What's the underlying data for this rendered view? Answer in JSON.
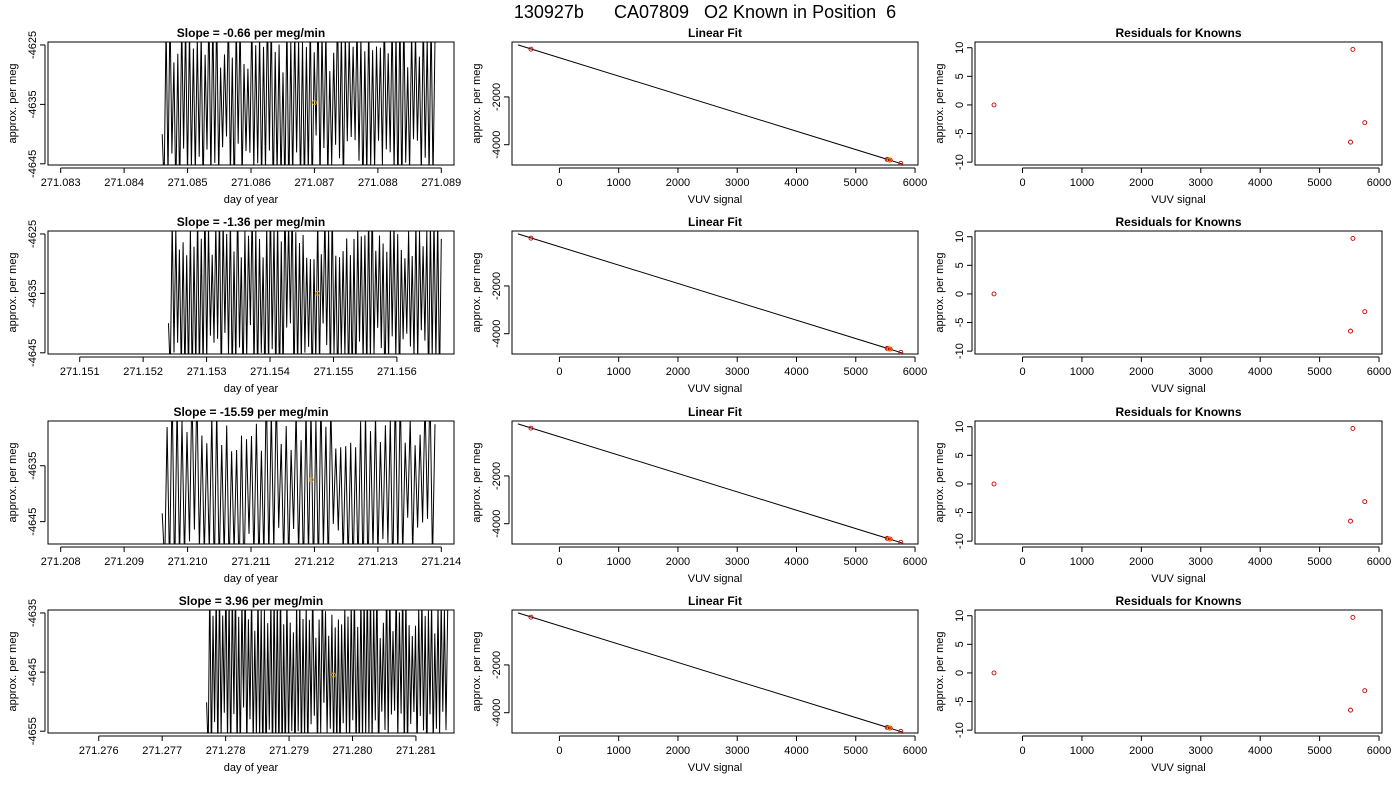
{
  "title": "130927b      CA07809   O2 Known in Position  6",
  "colors": {
    "trace": "#000000",
    "fit_line": "#000000",
    "point": "#cc0000",
    "highlight": "#e69f00",
    "frame": "#000000"
  },
  "chart_data": [
    {
      "type": "line",
      "title": "Slope =  -0.66  per meg/min",
      "xlabel": "day of year",
      "ylabel": "approx. per meg",
      "xlim": [
        271.0828,
        271.0892
      ],
      "ylim": [
        -4645.2,
        -4624.5
      ],
      "xticks": [
        271.083,
        271.084,
        271.085,
        271.086,
        271.087,
        271.088,
        271.089
      ],
      "xtick_decimals": 3,
      "yticks": [
        -4645,
        -4635,
        -4625
      ],
      "grid": false,
      "trace": {
        "start": 271.0846,
        "end": 271.0889,
        "seed": 11,
        "count": 140
      },
      "highlight_point": {
        "x": 271.087,
        "y": -4634.7
      }
    },
    {
      "type": "scatter",
      "title": "Linear Fit",
      "xlabel": "VUV signal",
      "ylabel": "approx. per meg",
      "xlim": [
        -800,
        6050
      ],
      "ylim": [
        -4850,
        300
      ],
      "xticks": [
        0,
        1000,
        2000,
        3000,
        4000,
        5000,
        6000
      ],
      "yticks": [
        -4000,
        -2000
      ],
      "grid": false,
      "fit_line": {
        "x": [
          -700,
          5780
        ],
        "y": [
          180,
          -4805
        ]
      },
      "points": [
        {
          "x": -480,
          "y": 0
        },
        {
          "x": 5530,
          "y": -4615
        },
        {
          "x": 5555,
          "y": -4630
        },
        {
          "x": 5580,
          "y": -4640
        },
        {
          "x": 5760,
          "y": -4780
        }
      ],
      "highlight_point": {
        "x": 5565,
        "y": -4634
      }
    },
    {
      "type": "scatter",
      "title": "Residuals for Knowns",
      "xlabel": "VUV signal",
      "ylabel": "approx. per meg",
      "xlim": [
        -800,
        6050
      ],
      "ylim": [
        -10.5,
        11
      ],
      "xticks": [
        0,
        1000,
        2000,
        3000,
        4000,
        5000,
        6000
      ],
      "yticks": [
        -10,
        -5,
        0,
        5,
        10
      ],
      "grid": false,
      "points": [
        {
          "x": -480,
          "y": 0
        },
        {
          "x": 5560,
          "y": 9.7
        },
        {
          "x": 5520,
          "y": -6.5
        },
        {
          "x": 5760,
          "y": -3.1
        }
      ]
    },
    {
      "type": "line",
      "title": "Slope =  -1.36  per meg/min",
      "xlabel": "day of year",
      "ylabel": "approx. per meg",
      "xlim": [
        271.1505,
        271.1569
      ],
      "ylim": [
        -4645.2,
        -4624.5
      ],
      "xticks": [
        271.151,
        271.152,
        271.153,
        271.154,
        271.155,
        271.156
      ],
      "xtick_decimals": 3,
      "yticks": [
        -4645,
        -4635,
        -4625
      ],
      "grid": false,
      "trace": {
        "start": 271.1524,
        "end": 271.1567,
        "seed": 23,
        "count": 150
      },
      "highlight_point": {
        "x": 271.15475,
        "y": -4635
      }
    },
    {
      "type": "scatter",
      "title": "Linear Fit",
      "xlabel": "VUV signal",
      "ylabel": "approx. per meg",
      "xlim": [
        -800,
        6050
      ],
      "ylim": [
        -4850,
        300
      ],
      "xticks": [
        0,
        1000,
        2000,
        3000,
        4000,
        5000,
        6000
      ],
      "yticks": [
        -4000,
        -2000
      ],
      "grid": false,
      "fit_line": {
        "x": [
          -700,
          5780
        ],
        "y": [
          180,
          -4805
        ]
      },
      "points": [
        {
          "x": -480,
          "y": 0
        },
        {
          "x": 5530,
          "y": -4615
        },
        {
          "x": 5555,
          "y": -4630
        },
        {
          "x": 5580,
          "y": -4640
        },
        {
          "x": 5760,
          "y": -4780
        }
      ],
      "highlight_point": {
        "x": 5565,
        "y": -4634
      }
    },
    {
      "type": "scatter",
      "title": "Residuals for Knowns",
      "xlabel": "VUV signal",
      "ylabel": "approx. per meg",
      "xlim": [
        -800,
        6050
      ],
      "ylim": [
        -10.5,
        11
      ],
      "xticks": [
        0,
        1000,
        2000,
        3000,
        4000,
        5000,
        6000
      ],
      "yticks": [
        -10,
        -5,
        0,
        5,
        10
      ],
      "grid": false,
      "points": [
        {
          "x": -480,
          "y": 0
        },
        {
          "x": 5560,
          "y": 9.7
        },
        {
          "x": 5520,
          "y": -6.5
        },
        {
          "x": 5760,
          "y": -3.1
        }
      ]
    },
    {
      "type": "line",
      "title": "Slope =  -15.59  per meg/min",
      "xlabel": "day of year",
      "ylabel": "approx. per meg",
      "xlim": [
        271.2078,
        271.2142
      ],
      "ylim": [
        -4649,
        -4627
      ],
      "xticks": [
        271.208,
        271.209,
        271.21,
        271.211,
        271.212,
        271.213,
        271.214
      ],
      "xtick_decimals": 3,
      "yticks": [
        -4645,
        -4635
      ],
      "grid": false,
      "trace": {
        "start": 271.2096,
        "end": 271.2139,
        "seed": 37,
        "count": 110
      },
      "highlight_point": {
        "x": 271.21195,
        "y": -4637.5
      }
    },
    {
      "type": "scatter",
      "title": "Linear Fit",
      "xlabel": "VUV signal",
      "ylabel": "approx. per meg",
      "xlim": [
        -800,
        6050
      ],
      "ylim": [
        -4850,
        300
      ],
      "xticks": [
        0,
        1000,
        2000,
        3000,
        4000,
        5000,
        6000
      ],
      "yticks": [
        -4000,
        -2000
      ],
      "grid": false,
      "fit_line": {
        "x": [
          -700,
          5780
        ],
        "y": [
          180,
          -4805
        ]
      },
      "points": [
        {
          "x": -480,
          "y": 0
        },
        {
          "x": 5530,
          "y": -4615
        },
        {
          "x": 5555,
          "y": -4630
        },
        {
          "x": 5580,
          "y": -4640
        },
        {
          "x": 5760,
          "y": -4780
        }
      ],
      "highlight_point": {
        "x": 5565,
        "y": -4634
      }
    },
    {
      "type": "scatter",
      "title": "Residuals for Knowns",
      "xlabel": "VUV signal",
      "ylabel": "approx. per meg",
      "xlim": [
        -800,
        6050
      ],
      "ylim": [
        -10.5,
        11
      ],
      "xticks": [
        0,
        1000,
        2000,
        3000,
        4000,
        5000,
        6000
      ],
      "yticks": [
        -10,
        -5,
        0,
        5,
        10
      ],
      "grid": false,
      "points": [
        {
          "x": -480,
          "y": 0
        },
        {
          "x": 5560,
          "y": 9.7
        },
        {
          "x": 5520,
          "y": -6.5
        },
        {
          "x": 5760,
          "y": -3.1
        }
      ]
    },
    {
      "type": "line",
      "title": "Slope =  3.96  per meg/min",
      "xlabel": "day of year",
      "ylabel": "approx. per meg",
      "xlim": [
        271.2752,
        271.2816
      ],
      "ylim": [
        -4655.3,
        -4634.5
      ],
      "xticks": [
        271.276,
        271.277,
        271.278,
        271.279,
        271.28,
        271.281
      ],
      "xtick_decimals": 3,
      "yticks": [
        -4655,
        -4645,
        -4635
      ],
      "grid": false,
      "trace": {
        "start": 271.2777,
        "end": 271.2815,
        "seed": 53,
        "count": 150
      },
      "highlight_point": {
        "x": 271.2797,
        "y": -4645.5
      }
    },
    {
      "type": "scatter",
      "title": "Linear Fit",
      "xlabel": "VUV signal",
      "ylabel": "approx. per meg",
      "xlim": [
        -800,
        6050
      ],
      "ylim": [
        -4850,
        300
      ],
      "xticks": [
        0,
        1000,
        2000,
        3000,
        4000,
        5000,
        6000
      ],
      "yticks": [
        -4000,
        -2000
      ],
      "grid": false,
      "fit_line": {
        "x": [
          -700,
          5780
        ],
        "y": [
          180,
          -4805
        ]
      },
      "points": [
        {
          "x": -480,
          "y": 0
        },
        {
          "x": 5530,
          "y": -4615
        },
        {
          "x": 5555,
          "y": -4630
        },
        {
          "x": 5580,
          "y": -4640
        },
        {
          "x": 5760,
          "y": -4780
        }
      ],
      "highlight_point": {
        "x": 5565,
        "y": -4634
      }
    },
    {
      "type": "scatter",
      "title": "Residuals for Knowns",
      "xlabel": "VUV signal",
      "ylabel": "approx. per meg",
      "xlim": [
        -800,
        6050
      ],
      "ylim": [
        -10.5,
        11
      ],
      "xticks": [
        0,
        1000,
        2000,
        3000,
        4000,
        5000,
        6000
      ],
      "yticks": [
        -10,
        -5,
        0,
        5,
        10
      ],
      "grid": false,
      "points": [
        {
          "x": -480,
          "y": 0
        },
        {
          "x": 5560,
          "y": 9.7
        },
        {
          "x": 5520,
          "y": -6.5
        },
        {
          "x": 5760,
          "y": -3.1
        }
      ]
    }
  ]
}
